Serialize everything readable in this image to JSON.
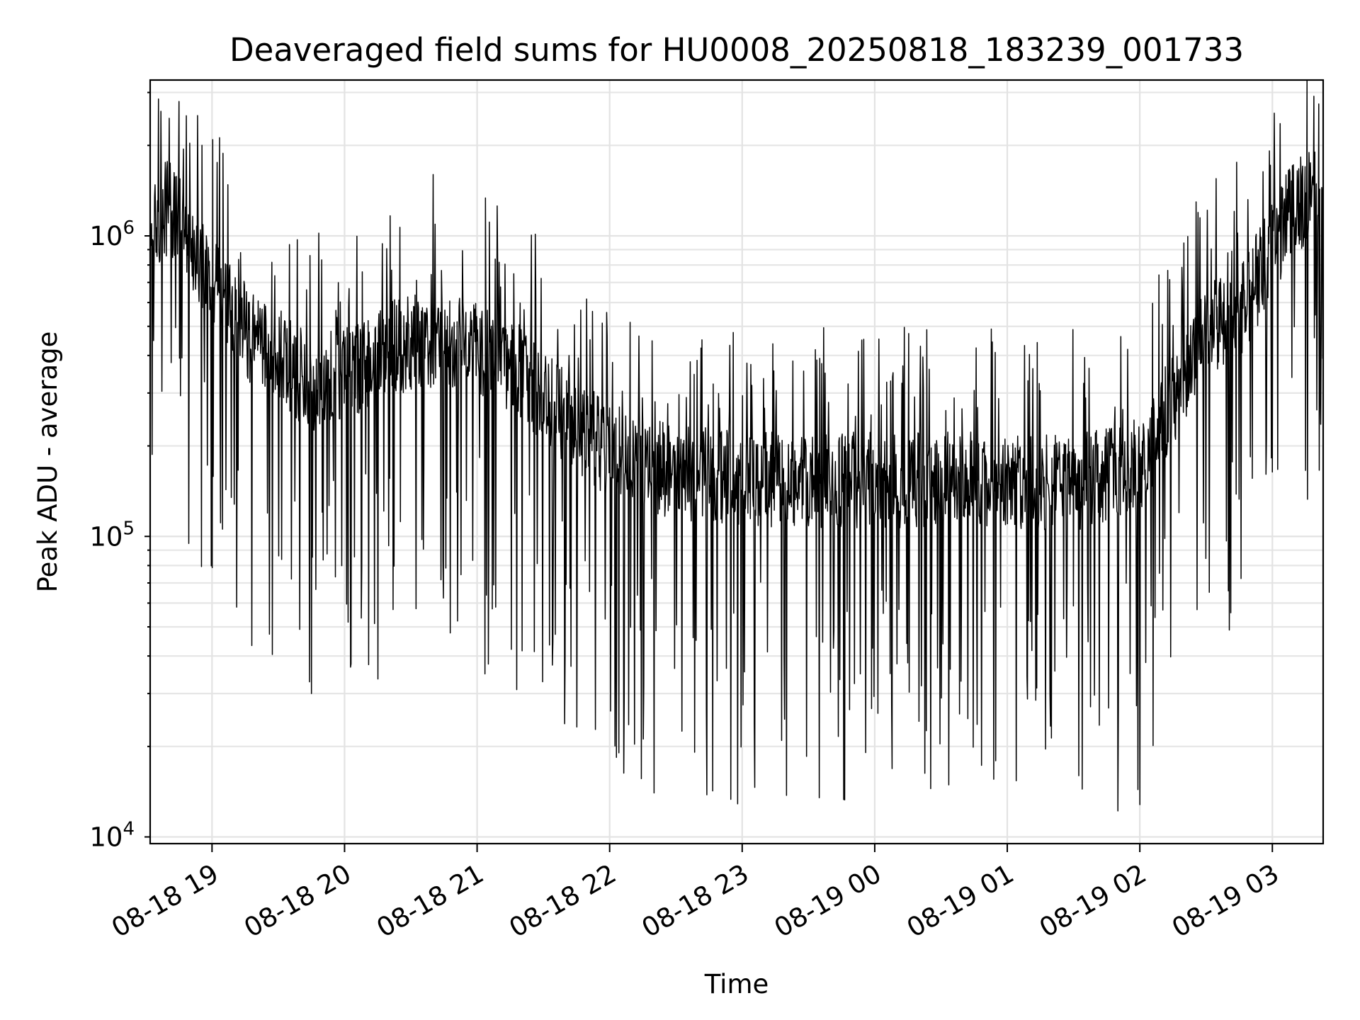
{
  "chart_data": {
    "type": "line",
    "title": "Deaveraged field sums for HU0008_20250818_183239_001733",
    "xlabel": "Time",
    "ylabel": "Peak ADU - average",
    "yscale": "log",
    "ylim": [
      9500,
      3300000
    ],
    "xlim": [
      "2025-08-18 18:32",
      "2025-08-19 03:23"
    ],
    "grid": true,
    "x_ticks": [
      "08-18 19",
      "08-18 20",
      "08-18 21",
      "08-18 22",
      "08-18 23",
      "08-19 00",
      "08-19 01",
      "08-19 02",
      "08-19 03"
    ],
    "y_ticks": [
      {
        "value": 10000,
        "base": "10",
        "exp": "4"
      },
      {
        "value": 100000,
        "base": "10",
        "exp": "5"
      },
      {
        "value": 1000000,
        "base": "10",
        "exp": "6"
      }
    ],
    "series": [
      {
        "values": [
          {
            "x": "2025-08-18 18:32",
            "y": 1100000
          },
          {
            "x": "2025-08-18 18:40",
            "y": 1300000
          },
          {
            "x": "2025-08-18 18:50",
            "y": 1000000
          },
          {
            "x": "2025-08-18 19:00",
            "y": 750000
          },
          {
            "x": "2025-08-18 19:15",
            "y": 500000
          },
          {
            "x": "2025-08-18 19:30",
            "y": 420000
          },
          {
            "x": "2025-08-18 19:45",
            "y": 330000
          },
          {
            "x": "2025-08-18 20:00",
            "y": 360000
          },
          {
            "x": "2025-08-18 20:20",
            "y": 440000
          },
          {
            "x": "2025-08-18 20:40",
            "y": 470000
          },
          {
            "x": "2025-08-18 21:00",
            "y": 450000
          },
          {
            "x": "2025-08-18 21:20",
            "y": 360000
          },
          {
            "x": "2025-08-18 21:40",
            "y": 260000
          },
          {
            "x": "2025-08-18 22:00",
            "y": 200000
          },
          {
            "x": "2025-08-18 22:30",
            "y": 170000
          },
          {
            "x": "2025-08-18 23:00",
            "y": 160000
          },
          {
            "x": "2025-08-18 23:30",
            "y": 160000
          },
          {
            "x": "2025-08-19 00:00",
            "y": 160000
          },
          {
            "x": "2025-08-19 00:30",
            "y": 160000
          },
          {
            "x": "2025-08-19 01:00",
            "y": 160000
          },
          {
            "x": "2025-08-19 01:30",
            "y": 155000
          },
          {
            "x": "2025-08-19 02:00",
            "y": 180000
          },
          {
            "x": "2025-08-19 02:20",
            "y": 350000
          },
          {
            "x": "2025-08-19 02:30",
            "y": 520000
          },
          {
            "x": "2025-08-19 02:45",
            "y": 560000
          },
          {
            "x": "2025-08-19 03:00",
            "y": 950000
          },
          {
            "x": "2025-08-19 03:10",
            "y": 1300000
          },
          {
            "x": "2025-08-19 03:23",
            "y": 1500000
          }
        ],
        "min_dips": [
          {
            "x": "2025-08-18 19:45",
            "y": 30000
          },
          {
            "x": "2025-08-18 22:20",
            "y": 14000
          },
          {
            "x": "2025-08-18 23:35",
            "y": 13500
          },
          {
            "x": "2025-08-19 01:50",
            "y": 12200
          },
          {
            "x": "2025-08-19 02:00",
            "y": 12800
          }
        ],
        "max_peaks": [
          {
            "x": "2025-08-18 18:45",
            "y": 2800000
          },
          {
            "x": "2025-08-18 20:40",
            "y": 1600000
          },
          {
            "x": "2025-08-19 03:23",
            "y": 2900000
          }
        ],
        "color": "#000000"
      }
    ]
  }
}
